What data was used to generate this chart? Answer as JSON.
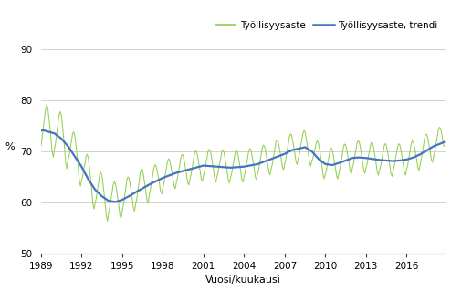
{
  "ylabel": "%",
  "xlabel": "Vuosi/kuukausi",
  "legend_labels": [
    "Työllisyysaste",
    "Työllisyysaste, trendi"
  ],
  "line_color_main": "#92d050",
  "line_color_trend": "#4472c4",
  "ylim": [
    50,
    90
  ],
  "yticks": [
    50,
    60,
    70,
    80,
    90
  ],
  "xticks": [
    1989,
    1992,
    1995,
    1998,
    2001,
    2004,
    2007,
    2010,
    2013,
    2016
  ],
  "background_color": "#ffffff",
  "grid_color": "#bfbfbf",
  "figsize": [
    4.94,
    3.18
  ],
  "dpi": 100
}
